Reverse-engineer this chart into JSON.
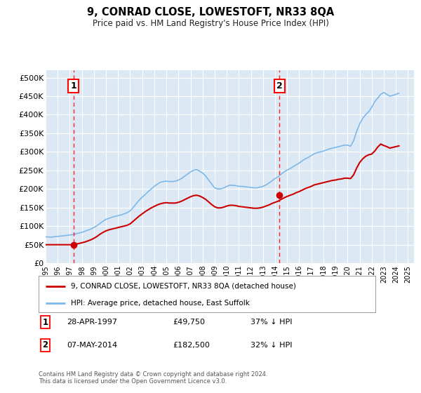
{
  "title": "9, CONRAD CLOSE, LOWESTOFT, NR33 8QA",
  "subtitle": "Price paid vs. HM Land Registry's House Price Index (HPI)",
  "ylabel_ticks": [
    "£0",
    "£50K",
    "£100K",
    "£150K",
    "£200K",
    "£250K",
    "£300K",
    "£350K",
    "£400K",
    "£450K",
    "£500K"
  ],
  "ytick_values": [
    0,
    50000,
    100000,
    150000,
    200000,
    250000,
    300000,
    350000,
    400000,
    450000,
    500000
  ],
  "ylim": [
    0,
    520000
  ],
  "xlim_start": 1995.0,
  "xlim_end": 2025.5,
  "bg_color": "#ffffff",
  "plot_bg_color": "#dce9f5",
  "grid_color": "#ffffff",
  "hpi_color": "#7db8e8",
  "price_color": "#cc0000",
  "marker1_x": 1997.32,
  "marker1_y": 49750,
  "marker2_x": 2014.35,
  "marker2_y": 182500,
  "vline1_x": 1997.32,
  "vline2_x": 2014.35,
  "legend_entries": [
    "9, CONRAD CLOSE, LOWESTOFT, NR33 8QA (detached house)",
    "HPI: Average price, detached house, East Suffolk"
  ],
  "sale1_date": "28-APR-1997",
  "sale1_price": "£49,750",
  "sale1_hpi": "37% ↓ HPI",
  "sale2_date": "07-MAY-2014",
  "sale2_price": "£182,500",
  "sale2_hpi": "32% ↓ HPI",
  "footer": "Contains HM Land Registry data © Crown copyright and database right 2024.\nThis data is licensed under the Open Government Licence v3.0.",
  "hpi_data_x": [
    1995.0,
    1995.25,
    1995.5,
    1995.75,
    1996.0,
    1996.25,
    1996.5,
    1996.75,
    1997.0,
    1997.25,
    1997.5,
    1997.75,
    1998.0,
    1998.25,
    1998.5,
    1998.75,
    1999.0,
    1999.25,
    1999.5,
    1999.75,
    2000.0,
    2000.25,
    2000.5,
    2000.75,
    2001.0,
    2001.25,
    2001.5,
    2001.75,
    2002.0,
    2002.25,
    2002.5,
    2002.75,
    2003.0,
    2003.25,
    2003.5,
    2003.75,
    2004.0,
    2004.25,
    2004.5,
    2004.75,
    2005.0,
    2005.25,
    2005.5,
    2005.75,
    2006.0,
    2006.25,
    2006.5,
    2006.75,
    2007.0,
    2007.25,
    2007.5,
    2007.75,
    2008.0,
    2008.25,
    2008.5,
    2008.75,
    2009.0,
    2009.25,
    2009.5,
    2009.75,
    2010.0,
    2010.25,
    2010.5,
    2010.75,
    2011.0,
    2011.25,
    2011.5,
    2011.75,
    2012.0,
    2012.25,
    2012.5,
    2012.75,
    2013.0,
    2013.25,
    2013.5,
    2013.75,
    2014.0,
    2014.25,
    2014.5,
    2014.75,
    2015.0,
    2015.25,
    2015.5,
    2015.75,
    2016.0,
    2016.25,
    2016.5,
    2016.75,
    2017.0,
    2017.25,
    2017.5,
    2017.75,
    2018.0,
    2018.25,
    2018.5,
    2018.75,
    2019.0,
    2019.25,
    2019.5,
    2019.75,
    2020.0,
    2020.25,
    2020.5,
    2020.75,
    2021.0,
    2021.25,
    2021.5,
    2021.75,
    2022.0,
    2022.25,
    2022.5,
    2022.75,
    2023.0,
    2023.25,
    2023.5,
    2023.75,
    2024.0,
    2024.25
  ],
  "hpi_data_y": [
    71000,
    70500,
    70000,
    71500,
    72000,
    73000,
    74000,
    75000,
    76000,
    77000,
    79000,
    81000,
    83000,
    86000,
    89000,
    92000,
    96000,
    101000,
    107000,
    113000,
    118000,
    121000,
    124000,
    126000,
    128000,
    130000,
    133000,
    136000,
    141000,
    150000,
    160000,
    170000,
    178000,
    185000,
    193000,
    200000,
    207000,
    213000,
    218000,
    220000,
    221000,
    220000,
    220000,
    221000,
    224000,
    228000,
    234000,
    240000,
    246000,
    250000,
    252000,
    248000,
    243000,
    235000,
    224000,
    213000,
    203000,
    200000,
    200000,
    203000,
    207000,
    210000,
    210000,
    209000,
    207000,
    207000,
    206000,
    205000,
    204000,
    203000,
    203000,
    205000,
    207000,
    211000,
    216000,
    222000,
    228000,
    233000,
    240000,
    246000,
    251000,
    255000,
    260000,
    265000,
    270000,
    276000,
    281000,
    285000,
    290000,
    295000,
    298000,
    300000,
    302000,
    305000,
    308000,
    310000,
    312000,
    314000,
    316000,
    318000,
    318000,
    315000,
    330000,
    355000,
    375000,
    390000,
    400000,
    408000,
    420000,
    435000,
    445000,
    455000,
    460000,
    455000,
    450000,
    452000,
    455000,
    458000
  ],
  "price_data_x": [
    1995.0,
    1995.25,
    1995.5,
    1995.75,
    1996.0,
    1996.25,
    1996.5,
    1996.75,
    1997.0,
    1997.25,
    1997.5,
    1997.75,
    1998.0,
    1998.25,
    1998.5,
    1998.75,
    1999.0,
    1999.25,
    1999.5,
    1999.75,
    2000.0,
    2000.25,
    2000.5,
    2000.75,
    2001.0,
    2001.25,
    2001.5,
    2001.75,
    2002.0,
    2002.25,
    2002.5,
    2002.75,
    2003.0,
    2003.25,
    2003.5,
    2003.75,
    2004.0,
    2004.25,
    2004.5,
    2004.75,
    2005.0,
    2005.25,
    2005.5,
    2005.75,
    2006.0,
    2006.25,
    2006.5,
    2006.75,
    2007.0,
    2007.25,
    2007.5,
    2007.75,
    2008.0,
    2008.25,
    2008.5,
    2008.75,
    2009.0,
    2009.25,
    2009.5,
    2009.75,
    2010.0,
    2010.25,
    2010.5,
    2010.75,
    2011.0,
    2011.25,
    2011.5,
    2011.75,
    2012.0,
    2012.25,
    2012.5,
    2012.75,
    2013.0,
    2013.25,
    2013.5,
    2013.75,
    2014.0,
    2014.25,
    2014.5,
    2014.75,
    2015.0,
    2015.25,
    2015.5,
    2015.75,
    2016.0,
    2016.25,
    2016.5,
    2016.75,
    2017.0,
    2017.25,
    2017.5,
    2017.75,
    2018.0,
    2018.25,
    2018.5,
    2018.75,
    2019.0,
    2019.25,
    2019.5,
    2019.75,
    2020.0,
    2020.25,
    2020.5,
    2020.75,
    2021.0,
    2021.25,
    2021.5,
    2021.75,
    2022.0,
    2022.25,
    2022.5,
    2022.75,
    2023.0,
    2023.25,
    2023.5,
    2023.75,
    2024.0,
    2024.25
  ],
  "price_data_y": [
    49750,
    49750,
    49750,
    49750,
    49750,
    49750,
    49750,
    49750,
    49750,
    49750,
    51000,
    53000,
    55000,
    57000,
    60000,
    63000,
    67000,
    72000,
    78000,
    83000,
    87000,
    90000,
    92000,
    94000,
    96000,
    98000,
    100000,
    102000,
    106000,
    113000,
    120000,
    127000,
    133000,
    139000,
    144000,
    149000,
    153000,
    157000,
    160000,
    162000,
    163000,
    162000,
    162000,
    162000,
    164000,
    167000,
    171000,
    175000,
    179000,
    182000,
    183000,
    181000,
    177000,
    172000,
    165000,
    158000,
    152000,
    149000,
    149000,
    151000,
    154000,
    156000,
    156000,
    155000,
    153000,
    152000,
    151000,
    150000,
    149000,
    148000,
    148000,
    149000,
    151000,
    154000,
    157000,
    161000,
    164000,
    167000,
    172000,
    176000,
    180000,
    183000,
    186000,
    190000,
    193000,
    197000,
    201000,
    204000,
    207000,
    211000,
    213000,
    215000,
    217000,
    219000,
    221000,
    223000,
    224000,
    226000,
    227000,
    229000,
    229000,
    228000,
    238000,
    256000,
    271000,
    281000,
    288000,
    292000,
    294000,
    302000,
    313000,
    321000,
    317000,
    314000,
    310000,
    312000,
    314000,
    316000
  ]
}
